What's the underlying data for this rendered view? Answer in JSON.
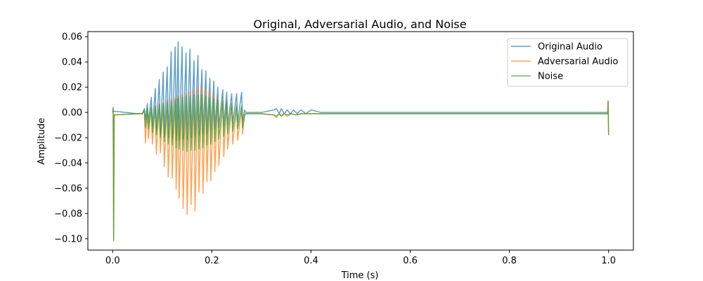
{
  "chart_data": {
    "type": "line",
    "title": "Original, Adversarial Audio, and Noise",
    "xlabel": "Time (s)",
    "ylabel": "Amplitude",
    "xlim": [
      -0.05,
      1.05
    ],
    "ylim": [
      -0.109,
      0.064
    ],
    "xticks": [
      0.0,
      0.2,
      0.4,
      0.6,
      0.8,
      1.0
    ],
    "xtick_labels": [
      "0.0",
      "0.2",
      "0.4",
      "0.6",
      "0.8",
      "1.0"
    ],
    "yticks": [
      -0.1,
      -0.08,
      -0.06,
      -0.04,
      -0.02,
      0.0,
      0.02,
      0.04,
      0.06
    ],
    "ytick_labels": [
      "−0.10",
      "−0.08",
      "−0.06",
      "−0.04",
      "−0.02",
      "0.00",
      "0.02",
      "0.04",
      "0.06"
    ],
    "grid": false,
    "legend_position": "top-right",
    "series": [
      {
        "name": "Original Audio",
        "color": "#1f77b4",
        "points": [
          [
            0.0,
            0.0
          ],
          [
            0.002,
            0.001
          ],
          [
            0.05,
            -0.001
          ],
          [
            0.06,
            -0.001
          ],
          [
            0.064,
            0.003
          ],
          [
            0.066,
            -0.006
          ],
          [
            0.07,
            0.007
          ],
          [
            0.072,
            -0.008
          ],
          [
            0.078,
            0.012
          ],
          [
            0.08,
            -0.012
          ],
          [
            0.086,
            0.019
          ],
          [
            0.088,
            -0.015
          ],
          [
            0.094,
            0.026
          ],
          [
            0.096,
            -0.018
          ],
          [
            0.102,
            0.032
          ],
          [
            0.104,
            -0.019
          ],
          [
            0.11,
            0.036
          ],
          [
            0.112,
            -0.02
          ],
          [
            0.118,
            0.048
          ],
          [
            0.12,
            -0.021
          ],
          [
            0.126,
            0.052
          ],
          [
            0.128,
            -0.022
          ],
          [
            0.132,
            0.056
          ],
          [
            0.134,
            -0.022
          ],
          [
            0.14,
            0.052
          ],
          [
            0.142,
            -0.021
          ],
          [
            0.148,
            0.047
          ],
          [
            0.15,
            -0.021
          ],
          [
            0.156,
            0.05
          ],
          [
            0.158,
            -0.02
          ],
          [
            0.164,
            0.041
          ],
          [
            0.166,
            -0.019
          ],
          [
            0.172,
            0.045
          ],
          [
            0.174,
            -0.018
          ],
          [
            0.18,
            0.034
          ],
          [
            0.182,
            -0.017
          ],
          [
            0.188,
            0.033
          ],
          [
            0.19,
            -0.016
          ],
          [
            0.196,
            0.027
          ],
          [
            0.198,
            -0.014
          ],
          [
            0.204,
            0.025
          ],
          [
            0.206,
            -0.013
          ],
          [
            0.212,
            0.02
          ],
          [
            0.214,
            -0.012
          ],
          [
            0.222,
            0.018
          ],
          [
            0.224,
            -0.011
          ],
          [
            0.23,
            0.016
          ],
          [
            0.232,
            -0.01
          ],
          [
            0.24,
            0.015
          ],
          [
            0.242,
            -0.009
          ],
          [
            0.25,
            0.015
          ],
          [
            0.252,
            -0.008
          ],
          [
            0.26,
            0.016
          ],
          [
            0.262,
            -0.007
          ],
          [
            0.266,
            0.002
          ],
          [
            0.268,
            0.0
          ],
          [
            0.3,
            0.0
          ],
          [
            0.325,
            0.002
          ],
          [
            0.33,
            0.003
          ],
          [
            0.336,
            -0.001
          ],
          [
            0.34,
            0.003
          ],
          [
            0.346,
            -0.001
          ],
          [
            0.352,
            0.002
          ],
          [
            0.358,
            -0.001
          ],
          [
            0.365,
            0.002
          ],
          [
            0.372,
            -0.001
          ],
          [
            0.38,
            0.002
          ],
          [
            0.39,
            -0.001
          ],
          [
            0.4,
            0.002
          ],
          [
            0.41,
            0.001
          ],
          [
            0.42,
            0.0
          ],
          [
            0.6,
            0.0
          ],
          [
            0.8,
            0.0
          ],
          [
            0.998,
            0.0
          ],
          [
            1.0,
            0.0
          ]
        ]
      },
      {
        "name": "Adversarial Audio",
        "color": "#ff7f0e",
        "points": [
          [
            0.0,
            0.0
          ],
          [
            0.001,
            0.003
          ],
          [
            0.002,
            -0.102
          ],
          [
            0.003,
            -0.002
          ],
          [
            0.05,
            -0.001
          ],
          [
            0.06,
            -0.001
          ],
          [
            0.064,
            0.001
          ],
          [
            0.066,
            -0.024
          ],
          [
            0.07,
            0.002
          ],
          [
            0.072,
            -0.021
          ],
          [
            0.078,
            0.004
          ],
          [
            0.08,
            -0.025
          ],
          [
            0.086,
            0.005
          ],
          [
            0.088,
            -0.033
          ],
          [
            0.094,
            0.007
          ],
          [
            0.096,
            -0.032
          ],
          [
            0.102,
            0.008
          ],
          [
            0.104,
            -0.043
          ],
          [
            0.11,
            0.01
          ],
          [
            0.112,
            -0.051
          ],
          [
            0.118,
            0.011
          ],
          [
            0.12,
            -0.052
          ],
          [
            0.126,
            0.012
          ],
          [
            0.128,
            -0.061
          ],
          [
            0.132,
            0.013
          ],
          [
            0.134,
            -0.068
          ],
          [
            0.14,
            0.014
          ],
          [
            0.142,
            -0.076
          ],
          [
            0.148,
            0.015
          ],
          [
            0.15,
            -0.081
          ],
          [
            0.156,
            0.016
          ],
          [
            0.158,
            -0.073
          ],
          [
            0.164,
            0.018
          ],
          [
            0.166,
            -0.078
          ],
          [
            0.172,
            0.02
          ],
          [
            0.174,
            -0.063
          ],
          [
            0.18,
            0.021
          ],
          [
            0.182,
            -0.064
          ],
          [
            0.188,
            0.019
          ],
          [
            0.19,
            -0.055
          ],
          [
            0.196,
            0.017
          ],
          [
            0.198,
            -0.054
          ],
          [
            0.204,
            0.014
          ],
          [
            0.206,
            -0.047
          ],
          [
            0.212,
            0.012
          ],
          [
            0.214,
            -0.042
          ],
          [
            0.222,
            0.01
          ],
          [
            0.224,
            -0.035
          ],
          [
            0.23,
            0.008
          ],
          [
            0.232,
            -0.029
          ],
          [
            0.24,
            0.006
          ],
          [
            0.242,
            -0.025
          ],
          [
            0.25,
            0.004
          ],
          [
            0.252,
            -0.022
          ],
          [
            0.26,
            0.003
          ],
          [
            0.262,
            -0.017
          ],
          [
            0.266,
            -0.002
          ],
          [
            0.268,
            -0.001
          ],
          [
            0.3,
            -0.001
          ],
          [
            0.325,
            -0.002
          ],
          [
            0.33,
            -0.004
          ],
          [
            0.336,
            -0.001
          ],
          [
            0.34,
            -0.003
          ],
          [
            0.346,
            -0.001
          ],
          [
            0.352,
            -0.003
          ],
          [
            0.36,
            -0.001
          ],
          [
            0.37,
            -0.002
          ],
          [
            0.38,
            -0.001
          ],
          [
            0.39,
            -0.001
          ],
          [
            0.42,
            -0.001
          ],
          [
            0.6,
            -0.001
          ],
          [
            0.8,
            -0.001
          ],
          [
            0.998,
            -0.001
          ],
          [
            0.999,
            0.009
          ],
          [
            1.0,
            -0.018
          ]
        ]
      },
      {
        "name": "Noise",
        "color": "#2ca02c",
        "points": [
          [
            0.0,
            0.0
          ],
          [
            0.001,
            0.004
          ],
          [
            0.002,
            -0.101
          ],
          [
            0.003,
            -0.002
          ],
          [
            0.05,
            -0.001
          ],
          [
            0.06,
            -0.001
          ],
          [
            0.064,
            0.002
          ],
          [
            0.066,
            -0.012
          ],
          [
            0.07,
            0.003
          ],
          [
            0.072,
            -0.013
          ],
          [
            0.078,
            0.004
          ],
          [
            0.08,
            -0.016
          ],
          [
            0.086,
            0.005
          ],
          [
            0.088,
            -0.018
          ],
          [
            0.094,
            0.006
          ],
          [
            0.096,
            -0.02
          ],
          [
            0.102,
            0.007
          ],
          [
            0.104,
            -0.023
          ],
          [
            0.11,
            0.008
          ],
          [
            0.112,
            -0.025
          ],
          [
            0.118,
            0.009
          ],
          [
            0.12,
            -0.026
          ],
          [
            0.126,
            0.01
          ],
          [
            0.128,
            -0.028
          ],
          [
            0.132,
            0.011
          ],
          [
            0.134,
            -0.029
          ],
          [
            0.14,
            0.012
          ],
          [
            0.142,
            -0.03
          ],
          [
            0.148,
            0.013
          ],
          [
            0.15,
            -0.031
          ],
          [
            0.156,
            0.013
          ],
          [
            0.158,
            -0.03
          ],
          [
            0.164,
            0.014
          ],
          [
            0.166,
            -0.03
          ],
          [
            0.172,
            0.014
          ],
          [
            0.174,
            -0.029
          ],
          [
            0.18,
            0.014
          ],
          [
            0.182,
            -0.028
          ],
          [
            0.188,
            0.013
          ],
          [
            0.19,
            -0.026
          ],
          [
            0.196,
            0.012
          ],
          [
            0.198,
            -0.025
          ],
          [
            0.204,
            0.011
          ],
          [
            0.206,
            -0.023
          ],
          [
            0.212,
            0.01
          ],
          [
            0.214,
            -0.021
          ],
          [
            0.222,
            0.009
          ],
          [
            0.224,
            -0.019
          ],
          [
            0.23,
            0.008
          ],
          [
            0.232,
            -0.017
          ],
          [
            0.24,
            0.007
          ],
          [
            0.242,
            -0.015
          ],
          [
            0.25,
            0.006
          ],
          [
            0.252,
            -0.013
          ],
          [
            0.26,
            0.005
          ],
          [
            0.262,
            -0.012
          ],
          [
            0.266,
            -0.002
          ],
          [
            0.268,
            -0.001
          ],
          [
            0.3,
            -0.001
          ],
          [
            0.325,
            -0.002
          ],
          [
            0.33,
            -0.003
          ],
          [
            0.336,
            -0.001
          ],
          [
            0.34,
            -0.003
          ],
          [
            0.346,
            -0.001
          ],
          [
            0.352,
            -0.002
          ],
          [
            0.36,
            -0.001
          ],
          [
            0.37,
            -0.002
          ],
          [
            0.38,
            -0.001
          ],
          [
            0.39,
            -0.001
          ],
          [
            0.42,
            -0.001
          ],
          [
            0.6,
            -0.001
          ],
          [
            0.8,
            -0.001
          ],
          [
            0.998,
            -0.001
          ],
          [
            0.999,
            0.009
          ],
          [
            1.0,
            -0.018
          ]
        ]
      }
    ]
  }
}
